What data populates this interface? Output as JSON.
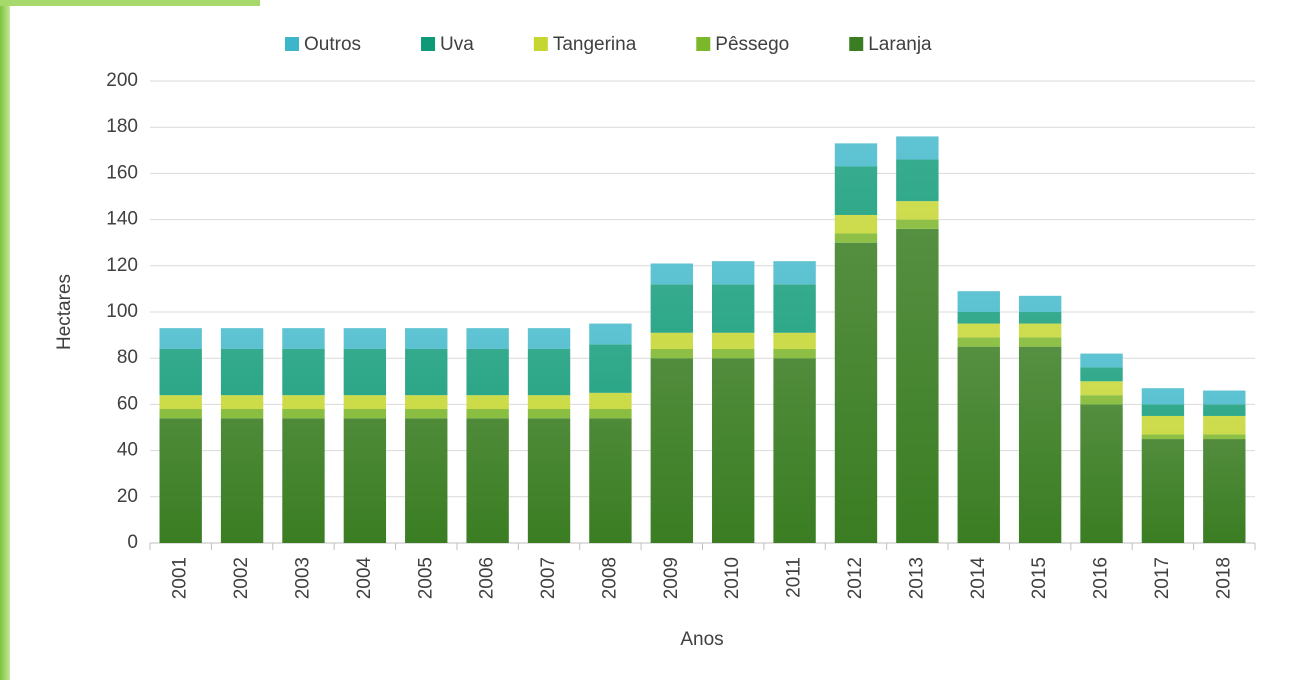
{
  "chart_data": {
    "type": "bar",
    "stacked": true,
    "x_label": "Anos",
    "y_label": "Hectares",
    "categories": [
      "2001",
      "2002",
      "2003",
      "2004",
      "2005",
      "2006",
      "2007",
      "2008",
      "2009",
      "2010",
      "2011",
      "2012",
      "2013",
      "2014",
      "2015",
      "2016",
      "2017",
      "2018"
    ],
    "series": [
      {
        "name": "Laranja",
        "color": "#3a7d22",
        "values": [
          54,
          54,
          54,
          54,
          54,
          54,
          54,
          54,
          80,
          80,
          80,
          130,
          136,
          85,
          85,
          60,
          45,
          45
        ]
      },
      {
        "name": "Pêssego",
        "color": "#7cb62a",
        "values": [
          4,
          4,
          4,
          4,
          4,
          4,
          4,
          4,
          4,
          4,
          4,
          4,
          4,
          4,
          4,
          4,
          2,
          2
        ]
      },
      {
        "name": "Tangerina",
        "color": "#c5d630",
        "values": [
          6,
          6,
          6,
          6,
          6,
          6,
          6,
          7,
          7,
          7,
          7,
          8,
          8,
          6,
          6,
          6,
          8,
          8
        ]
      },
      {
        "name": "Uva",
        "color": "#0e9a77",
        "values": [
          20,
          20,
          20,
          20,
          20,
          20,
          20,
          21,
          21,
          21,
          21,
          21,
          18,
          5,
          5,
          6,
          5,
          5
        ]
      },
      {
        "name": "Outros",
        "color": "#3cb6c8",
        "values": [
          9,
          9,
          9,
          9,
          9,
          9,
          9,
          9,
          9,
          10,
          10,
          10,
          10,
          9,
          7,
          6,
          7,
          6
        ]
      }
    ],
    "ylim": [
      0,
      200
    ],
    "yticks": [
      0,
      20,
      40,
      60,
      80,
      100,
      120,
      140,
      160,
      180,
      200
    ],
    "grid": true,
    "legend": "top"
  }
}
